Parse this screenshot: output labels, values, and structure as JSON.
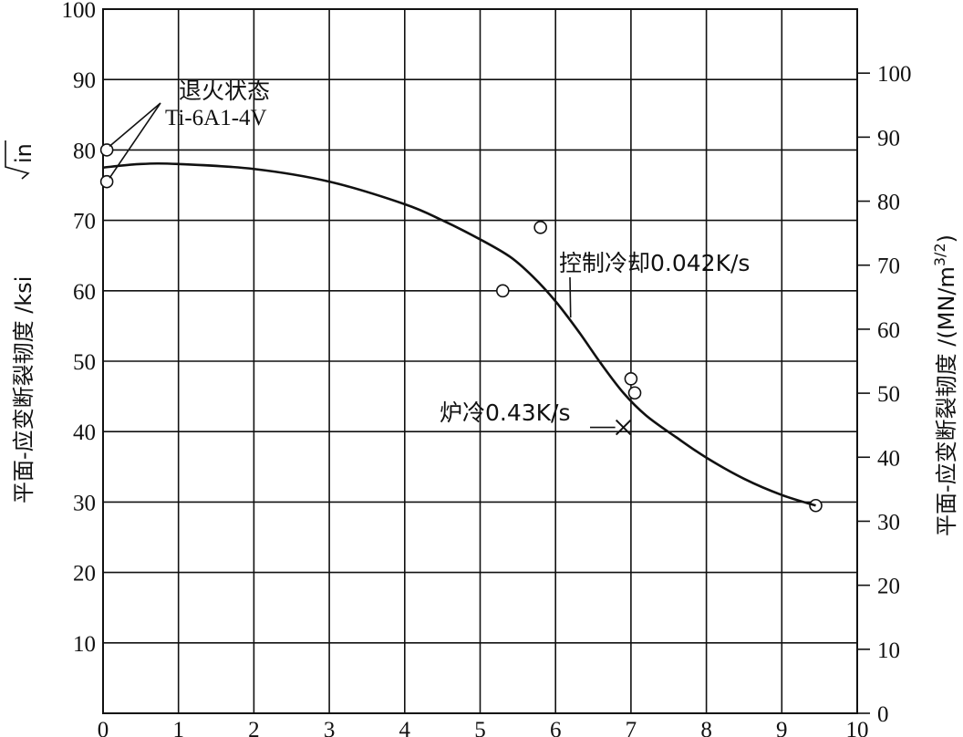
{
  "chart_data": {
    "type": "scatter",
    "title": "",
    "xlim": [
      0,
      10
    ],
    "ylim": [
      0,
      100
    ],
    "ylim_right": [
      0,
      110
    ],
    "grid": true,
    "x_ticks": [
      "0",
      "1",
      "2",
      "3",
      "4",
      "5",
      "6",
      "7",
      "8",
      "9",
      "10"
    ],
    "y_ticks": [
      "10",
      "20",
      "30",
      "40",
      "50",
      "60",
      "70",
      "80",
      "90",
      "100"
    ],
    "y_ticks_right": [
      "0",
      "10",
      "20",
      "30",
      "40",
      "50",
      "60",
      "70",
      "80",
      "90",
      "100"
    ],
    "ylabel_left": {
      "main": "平面-应变断裂韧度 /ksi",
      "radical": "in"
    },
    "ylabel_right": {
      "main": "平面-应变断裂韧度 /(MN/m",
      "sup": "3/2",
      "tail": ")"
    },
    "series": [
      {
        "name": "",
        "kind": "points",
        "marker": "circle",
        "x": [
          0.05,
          0.05,
          5.3,
          5.8,
          7.0,
          7.05,
          9.45
        ],
        "y": [
          80,
          75.5,
          60,
          69,
          47.5,
          45.5,
          29.5
        ]
      },
      {
        "name": "控制冷却0.042K/s",
        "kind": "curve",
        "x": [
          0.0,
          0.5,
          1.0,
          2.0,
          3.0,
          4.0,
          4.5,
          5.0,
          5.4,
          5.7,
          6.0,
          6.3,
          6.6,
          6.9,
          7.2,
          7.6,
          8.0,
          8.5,
          9.0,
          9.45
        ],
        "y": [
          77.5,
          78,
          78,
          77.3,
          75.5,
          72.3,
          70,
          67.3,
          64.8,
          62,
          58.5,
          54.3,
          49.7,
          45.5,
          42.3,
          39.2,
          36.3,
          33.3,
          31.0,
          29.5
        ]
      },
      {
        "name": "炉冷0.43K/s",
        "kind": "points",
        "marker": "x",
        "x": [
          6.9
        ],
        "y": [
          40.6
        ]
      }
    ],
    "annotations": [
      {
        "text": "退火状态",
        "points_to": [
          [
            0.05,
            80
          ],
          [
            0.05,
            75.5
          ]
        ]
      },
      {
        "text": "Ti-6A1-4V"
      },
      {
        "text": "控制冷却0.042K/s",
        "points_to": [
          [
            6.2,
            56.2
          ]
        ]
      },
      {
        "text": "炉冷0.43K/s"
      }
    ]
  }
}
